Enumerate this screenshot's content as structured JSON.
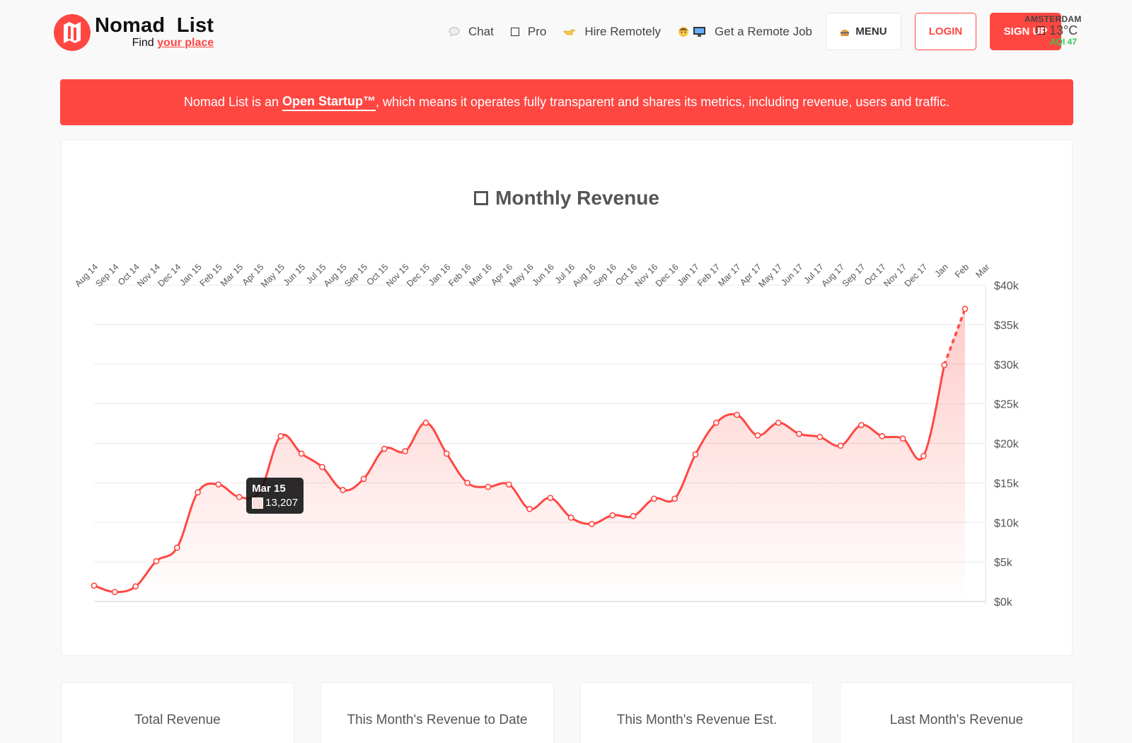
{
  "brand": {
    "name": "Nomad  List",
    "tagline_prefix": "Find ",
    "tagline_emphasis": "your place",
    "accent_color": "#ff4742"
  },
  "nav": {
    "chat": {
      "label": "Chat",
      "icon": "speech-bubble-icon"
    },
    "pro": {
      "label": "Pro",
      "icon": "box-icon"
    },
    "hire": {
      "label": "Hire Remotely",
      "icon": "pointing-hand-icon"
    },
    "job": {
      "label": "Get a Remote Job",
      "icon": "person-computer-icon"
    },
    "menu_label": "MENU",
    "login_label": "LOGIN",
    "signup_label": "SIGN UP"
  },
  "weather": {
    "city": "AMSTERDAM",
    "temp": "13°C",
    "aqi": "AQI 47",
    "aqi_color": "#35c759"
  },
  "banner": {
    "before": "Nomad List is an ",
    "link": "Open Startup™",
    "after": ", which means it operates fully transparent and shares its metrics, including revenue, users and traffic."
  },
  "chart_title": "Monthly Revenue",
  "tooltip": {
    "label": "Mar 15",
    "value": "13,207"
  },
  "chart_data": {
    "type": "area",
    "title": "Monthly Revenue",
    "xlabel": "",
    "ylabel": "",
    "ylim": [
      0,
      40000
    ],
    "y_ticks": [
      "$0k",
      "$5k",
      "$10k",
      "$15k",
      "$20k",
      "$25k",
      "$30k",
      "$35k",
      "$40k"
    ],
    "y_tick_values": [
      0,
      5000,
      10000,
      15000,
      20000,
      25000,
      30000,
      35000,
      40000
    ],
    "x_axis_position": "top",
    "y_axis_position": "right",
    "grid": true,
    "line_color": "#ff4742",
    "categories": [
      "Aug 14",
      "Sep 14",
      "Oct 14",
      "Nov 14",
      "Dec 14",
      "Jan 15",
      "Feb 15",
      "Mar 15",
      "Apr 15",
      "May 15",
      "Jun 15",
      "Jul 15",
      "Aug 15",
      "Sep 15",
      "Oct 15",
      "Nov 15",
      "Dec 15",
      "Jan 16",
      "Feb 16",
      "Mar 16",
      "Apr 16",
      "May 16",
      "Jun 16",
      "Jul 16",
      "Aug 16",
      "Sep 16",
      "Oct 16",
      "Nov 16",
      "Dec 16",
      "Jan 17",
      "Feb 17",
      "Mar 17",
      "Apr 17",
      "May 17",
      "Jun 17",
      "Jul 17",
      "Aug 17",
      "Sep 17",
      "Oct 17",
      "Nov 17",
      "Dec 17",
      "Jan",
      "Feb",
      "Mar"
    ],
    "values": [
      2000,
      1200,
      1900,
      5100,
      6800,
      13800,
      14800,
      13207,
      14000,
      20900,
      18700,
      17000,
      14100,
      15500,
      19300,
      19000,
      22600,
      18700,
      15000,
      14500,
      14800,
      11700,
      13100,
      10600,
      9800,
      10900,
      10800,
      13000,
      13000,
      18600,
      22600,
      23600,
      21000,
      22600,
      21200,
      20800,
      19700,
      22300,
      20900,
      20600,
      18400,
      29900,
      37000,
      null
    ],
    "dashed_last_segment": true
  },
  "stats": [
    {
      "label": "Total Revenue"
    },
    {
      "label": "This Month's Revenue to Date"
    },
    {
      "label": "This Month's Revenue Est."
    },
    {
      "label": "Last Month's Revenue"
    }
  ]
}
